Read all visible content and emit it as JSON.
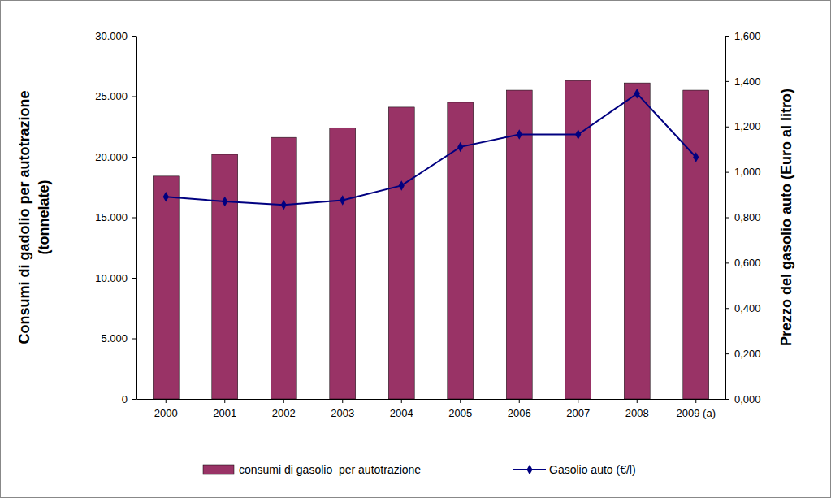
{
  "chart_data": {
    "type": "bar",
    "y_label": "Consumi di gadolio per autotrazione\n(tonnelate)",
    "y2_label": "Prezzo del gasolio auto (Euro al litro)",
    "categories": [
      "2000",
      "2001",
      "2002",
      "2003",
      "2004",
      "2005",
      "2006",
      "2007",
      "2008",
      "2009 (a)"
    ],
    "series": [
      {
        "name": "consumi di gasolio  per autotrazione",
        "type": "bar",
        "color": "#993366",
        "values": [
          18400,
          20200,
          21600,
          22400,
          24100,
          24500,
          25500,
          26300,
          26100,
          25500
        ]
      },
      {
        "name": "Gasolio auto (€/l)",
        "type": "line",
        "axis": "y2",
        "color": "#000080",
        "marker": "diamond",
        "line_style": "solid",
        "values": [
          0.89,
          0.87,
          0.855,
          0.875,
          0.94,
          1.11,
          1.165,
          1.165,
          1.345,
          1.065
        ]
      }
    ],
    "ylim": [
      0,
      30000
    ],
    "yticks": [
      0,
      {
        "value": 5000,
        "label": "5.000"
      },
      {
        "value": 10000,
        "label": "10.000"
      },
      {
        "value": 15000,
        "label": "15.000"
      },
      {
        "value": 20000,
        "label": "20.000"
      },
      {
        "value": 25000,
        "label": "25.000"
      },
      {
        "value": 30000,
        "label": "30.000"
      }
    ],
    "y2lim": [
      0,
      1.6
    ],
    "y2ticks": [
      {
        "value": 0,
        "label": "0,000"
      },
      {
        "value": 0.2,
        "label": "0,200"
      },
      {
        "value": 0.4,
        "label": "0,400"
      },
      {
        "value": 0.6,
        "label": "0,600"
      },
      {
        "value": 0.8,
        "label": "0,800"
      },
      {
        "value": 1.0,
        "label": "1,000"
      },
      {
        "value": 1.2,
        "label": "1,200"
      },
      {
        "value": 1.4,
        "label": "1,400"
      },
      {
        "value": 1.6,
        "label": "1,600"
      }
    ],
    "grid": false,
    "legend": "bottom"
  }
}
